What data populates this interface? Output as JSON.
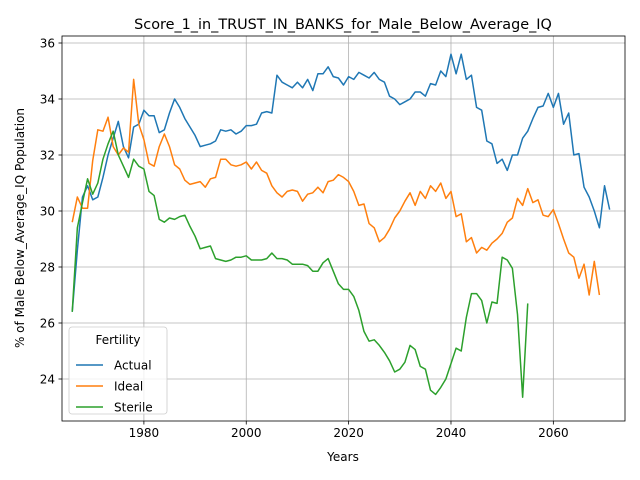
{
  "chart_data": {
    "type": "line",
    "title": "Score_1_in_TRUST_IN_BANKS_for_Male_Below_Average_IQ",
    "xlabel": "Years",
    "ylabel": "% of Male Below_Average_IQ Population",
    "xlim": [
      1964,
      2074
    ],
    "ylim": [
      22.5,
      36.25
    ],
    "xticks": [
      1980,
      2000,
      2020,
      2040,
      2060
    ],
    "yticks": [
      24,
      26,
      28,
      30,
      32,
      34,
      36
    ],
    "grid": true,
    "legend": {
      "title": "Fertility",
      "position": "lower-left"
    },
    "x_start": 1966,
    "series": [
      {
        "name": "Actual",
        "color": "#1f77b4",
        "values": [
          26.4,
          28.6,
          30.5,
          30.9,
          30.4,
          30.5,
          31.2,
          32.0,
          32.6,
          33.2,
          32.3,
          31.9,
          33.0,
          33.1,
          33.6,
          33.4,
          33.4,
          32.8,
          32.9,
          33.5,
          34.0,
          33.7,
          33.3,
          33.0,
          32.7,
          32.3,
          32.35,
          32.4,
          32.5,
          32.9,
          32.85,
          32.9,
          32.75,
          32.85,
          33.05,
          33.05,
          33.1,
          33.5,
          33.55,
          33.5,
          34.85,
          34.6,
          34.5,
          34.4,
          34.6,
          34.4,
          34.7,
          34.3,
          34.9,
          34.9,
          35.15,
          34.8,
          34.75,
          34.5,
          34.8,
          34.7,
          34.95,
          34.85,
          34.75,
          34.95,
          34.7,
          34.6,
          34.1,
          34.0,
          33.8,
          33.9,
          34.0,
          34.25,
          34.25,
          34.1,
          34.55,
          34.5,
          35.0,
          34.8,
          35.6,
          34.9,
          35.6,
          34.7,
          34.85,
          33.7,
          33.6,
          32.5,
          32.4,
          31.7,
          31.85,
          31.45,
          32.0,
          32.0,
          32.6,
          32.85,
          33.3,
          33.7,
          33.75,
          34.2,
          33.7,
          34.2,
          33.1,
          33.5,
          32.0,
          32.05,
          30.85,
          30.5,
          30.0,
          29.4,
          30.9,
          30.05
        ]
      },
      {
        "name": "Ideal",
        "color": "#ff7f0e",
        "values": [
          29.6,
          30.5,
          30.1,
          30.1,
          31.8,
          32.9,
          32.85,
          33.35,
          32.3,
          32.0,
          32.25,
          32.1,
          34.7,
          33.1,
          32.55,
          31.7,
          31.6,
          32.3,
          32.75,
          32.3,
          31.65,
          31.5,
          31.1,
          30.95,
          31.0,
          31.05,
          30.85,
          31.15,
          31.2,
          31.85,
          31.85,
          31.65,
          31.6,
          31.65,
          31.75,
          31.5,
          31.75,
          31.45,
          31.35,
          30.9,
          30.65,
          30.5,
          30.7,
          30.75,
          30.7,
          30.35,
          30.6,
          30.65,
          30.85,
          30.65,
          31.05,
          31.1,
          31.3,
          31.2,
          31.05,
          30.7,
          30.2,
          30.25,
          29.55,
          29.4,
          28.9,
          29.05,
          29.35,
          29.75,
          30.0,
          30.35,
          30.65,
          30.2,
          30.7,
          30.45,
          30.9,
          30.7,
          31.0,
          30.45,
          30.7,
          29.8,
          29.9,
          28.9,
          29.05,
          28.5,
          28.7,
          28.6,
          28.85,
          29.0,
          29.2,
          29.6,
          29.75,
          30.45,
          30.2,
          30.8,
          30.3,
          30.4,
          29.85,
          29.8,
          30.05,
          29.55,
          29.0,
          28.5,
          28.35,
          27.6,
          28.1,
          27.0,
          28.2,
          27.0
        ]
      },
      {
        "name": "Sterile",
        "color": "#2ca02c",
        "values": [
          26.4,
          29.4,
          30.3,
          31.15,
          30.6,
          31.0,
          31.85,
          32.4,
          32.85,
          32.0,
          31.6,
          31.2,
          31.85,
          31.6,
          31.5,
          30.7,
          30.55,
          29.7,
          29.6,
          29.75,
          29.7,
          29.8,
          29.85,
          29.45,
          29.1,
          28.65,
          28.7,
          28.75,
          28.3,
          28.25,
          28.2,
          28.25,
          28.35,
          28.35,
          28.4,
          28.25,
          28.25,
          28.25,
          28.3,
          28.5,
          28.3,
          28.3,
          28.25,
          28.1,
          28.1,
          28.1,
          28.05,
          27.85,
          27.85,
          28.15,
          28.3,
          27.85,
          27.4,
          27.2,
          27.2,
          26.95,
          26.45,
          25.7,
          25.35,
          25.4,
          25.2,
          24.95,
          24.65,
          24.25,
          24.35,
          24.6,
          25.2,
          25.05,
          24.45,
          24.35,
          23.6,
          23.45,
          23.7,
          24.0,
          24.55,
          25.1,
          25.0,
          26.2,
          27.05,
          27.05,
          26.8,
          26.0,
          26.75,
          26.7,
          28.35,
          28.25,
          27.95,
          26.3,
          23.35,
          26.7
        ]
      }
    ]
  }
}
